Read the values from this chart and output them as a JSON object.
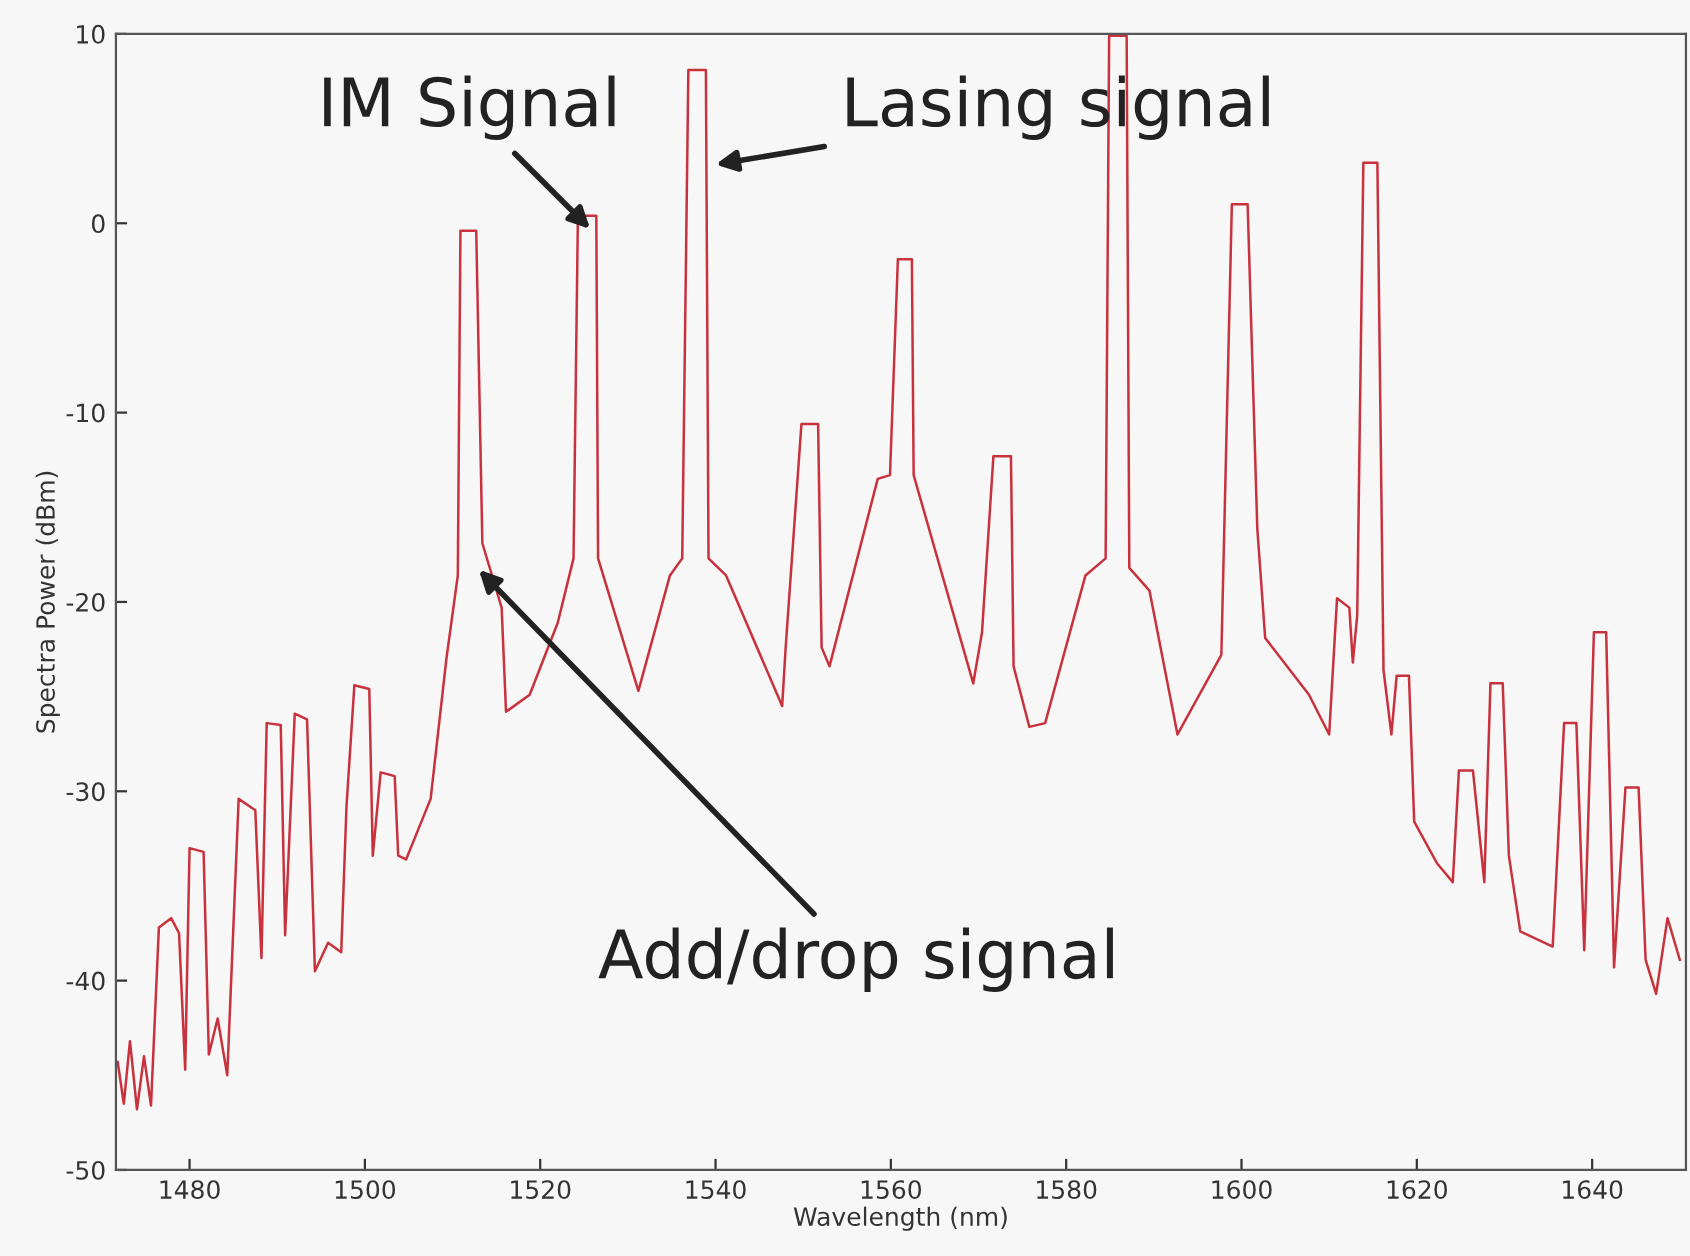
{
  "chart_data": {
    "type": "line",
    "xlabel": "Wavelength (nm)",
    "ylabel": "Spectra Power (dBm)",
    "xlim": [
      1471.6,
      1650.7
    ],
    "xticks": [
      1480,
      1500,
      1520,
      1540,
      1560,
      1580,
      1600,
      1620,
      1640
    ],
    "ylim": [
      -50,
      10
    ],
    "yticks": [
      -50,
      -40,
      -30,
      -20,
      -10,
      0,
      10
    ],
    "grid": false,
    "legend": false,
    "marker": "none",
    "line_style": "solid",
    "series": [
      {
        "color": "#c8323c",
        "x": [
          1471.8,
          1472.5,
          1473.2,
          1474.0,
          1474.8,
          1475.6,
          1476.5,
          1477.9,
          1478.8,
          1479.5,
          1480.0,
          1481.6,
          1482.2,
          1483.2,
          1484.3,
          1485.6,
          1487.5,
          1488.2,
          1488.8,
          1490.4,
          1490.9,
          1492.0,
          1493.4,
          1494.3,
          1495.8,
          1497.3,
          1497.9,
          1498.8,
          1500.5,
          1500.9,
          1501.8,
          1503.4,
          1503.8,
          1504.7,
          1507.5,
          1509.3,
          1510.6,
          1510.9,
          1512.7,
          1513.4,
          1515.6,
          1516.1,
          1518.8,
          1522.0,
          1523.8,
          1524.3,
          1526.4,
          1526.6,
          1531.2,
          1534.8,
          1536.2,
          1536.9,
          1538.9,
          1539.2,
          1541.2,
          1547.6,
          1548.0,
          1549.8,
          1551.7,
          1552.1,
          1553.0,
          1558.5,
          1559.9,
          1560.8,
          1562.4,
          1562.6,
          1569.4,
          1570.4,
          1571.7,
          1573.7,
          1574.0,
          1575.8,
          1577.6,
          1582.2,
          1584.5,
          1584.9,
          1586.9,
          1587.2,
          1589.5,
          1592.7,
          1597.7,
          1598.9,
          1600.7,
          1601.8,
          1602.7,
          1607.7,
          1610.0,
          1610.9,
          1612.3,
          1612.7,
          1613.2,
          1613.9,
          1615.5,
          1616.2,
          1617.1,
          1617.7,
          1619.1,
          1619.7,
          1622.3,
          1624.1,
          1624.8,
          1626.4,
          1627.7,
          1628.4,
          1629.8,
          1630.5,
          1631.8,
          1635.5,
          1636.8,
          1638.2,
          1639.1,
          1640.2,
          1641.6,
          1642.5,
          1643.8,
          1645.3,
          1646.1,
          1647.3,
          1648.6,
          1650.0
        ],
        "values": [
          -44.3,
          -46.5,
          -43.2,
          -46.8,
          -44.0,
          -46.6,
          -37.2,
          -36.7,
          -37.5,
          -44.7,
          -33.0,
          -33.2,
          -43.9,
          -42.0,
          -45.0,
          -30.4,
          -31.0,
          -38.8,
          -26.4,
          -26.5,
          -37.6,
          -25.9,
          -26.2,
          -39.5,
          -38.0,
          -38.5,
          -30.8,
          -24.4,
          -24.6,
          -33.4,
          -29.0,
          -29.2,
          -33.4,
          -33.6,
          -30.4,
          -23.0,
          -18.6,
          -0.4,
          -0.4,
          -16.9,
          -20.3,
          -25.8,
          -24.9,
          -21.1,
          -17.7,
          0.4,
          0.4,
          -17.7,
          -24.7,
          -18.6,
          -17.7,
          8.1,
          8.1,
          -17.7,
          -18.6,
          -25.5,
          -22.4,
          -10.6,
          -10.6,
          -22.4,
          -23.4,
          -13.5,
          -13.3,
          -1.9,
          -1.9,
          -13.3,
          -24.3,
          -21.6,
          -12.3,
          -12.3,
          -23.4,
          -26.6,
          -26.4,
          -18.6,
          -17.7,
          9.9,
          9.9,
          -18.2,
          -19.4,
          -27.0,
          -22.8,
          1.0,
          1.0,
          -16.1,
          -21.9,
          -24.9,
          -27.0,
          -19.8,
          -20.3,
          -23.2,
          -20.7,
          3.2,
          3.2,
          -23.6,
          -27.0,
          -23.9,
          -23.9,
          -31.6,
          -33.8,
          -34.8,
          -28.9,
          -28.9,
          -34.8,
          -24.3,
          -24.3,
          -33.4,
          -37.4,
          -38.2,
          -26.4,
          -26.4,
          -38.4,
          -21.6,
          -21.6,
          -39.3,
          -29.8,
          -29.8,
          -38.9,
          -40.7,
          -36.7,
          -38.9
        ]
      }
    ],
    "annotations": [
      {
        "text": "IM Signal",
        "x": 1525.7,
        "y": -0.3
      },
      {
        "text": "Lasing signal",
        "x": 1540.0,
        "y": 3.1
      },
      {
        "text": "Add/drop signal",
        "x": 1513.0,
        "y": -18.3
      }
    ]
  }
}
